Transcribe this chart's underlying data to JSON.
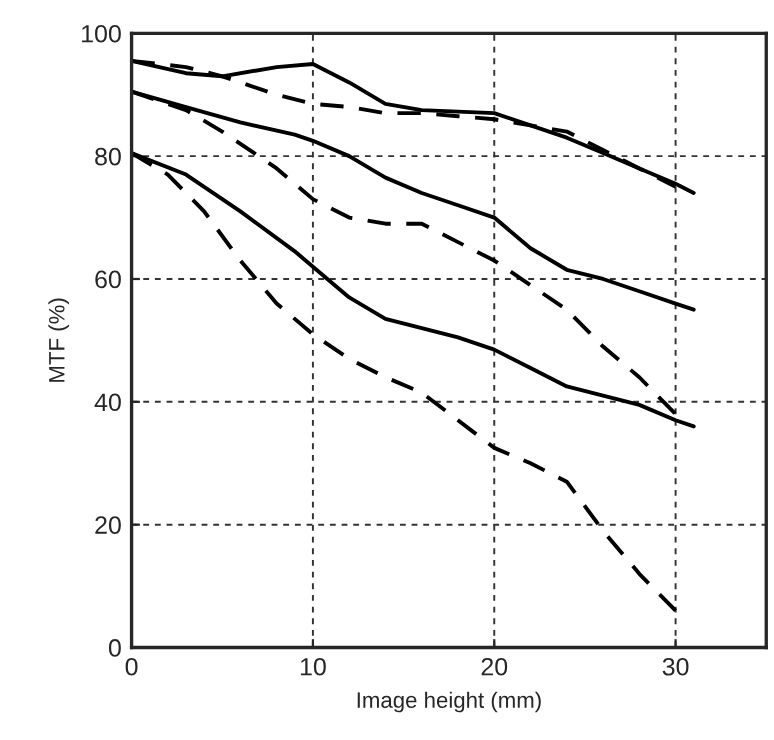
{
  "chart_data": {
    "type": "line",
    "xlabel": "Image height (mm)",
    "ylabel": "MTF (%)",
    "xlim": [
      0,
      35
    ],
    "ylim": [
      0,
      100
    ],
    "xticks": [
      0,
      10,
      20,
      30
    ],
    "yticks": [
      0,
      20,
      40,
      60,
      80,
      100
    ],
    "grid": true,
    "marker": "none",
    "series": [
      {
        "color": "#000000",
        "line_style": "solid",
        "x": [
          0,
          3,
          5,
          8,
          10,
          12,
          14,
          16,
          20,
          22,
          24,
          26,
          28,
          30,
          31
        ],
        "values": [
          95.5,
          93.5,
          93,
          94.5,
          95,
          92,
          88.5,
          87.5,
          87,
          85,
          83,
          80.5,
          78,
          75.5,
          74
        ]
      },
      {
        "color": "#000000",
        "line_style": "dashed",
        "x": [
          0,
          3,
          5,
          8,
          10,
          12,
          14,
          16,
          18,
          20,
          22,
          24,
          26,
          28,
          30
        ],
        "values": [
          95.5,
          94.5,
          93,
          90,
          88.5,
          88,
          87,
          87,
          86.5,
          86,
          85,
          84,
          81,
          78,
          75
        ]
      },
      {
        "color": "#000000",
        "line_style": "solid",
        "x": [
          0,
          3,
          6,
          9,
          10,
          12,
          14,
          16,
          18,
          20,
          22,
          24,
          26,
          28,
          30,
          31
        ],
        "values": [
          90.5,
          88,
          85.5,
          83.5,
          82.5,
          80,
          76.5,
          74,
          72,
          70,
          65,
          61.5,
          60,
          58,
          56,
          55
        ]
      },
      {
        "color": "#000000",
        "line_style": "dashed",
        "x": [
          0,
          3,
          5,
          8,
          10,
          12,
          14,
          16,
          18,
          20,
          22,
          24,
          26,
          28,
          30
        ],
        "values": [
          90.5,
          87.5,
          84,
          78,
          73,
          70,
          69,
          69,
          66,
          63,
          59,
          55,
          49,
          44,
          38
        ]
      },
      {
        "color": "#000000",
        "line_style": "solid",
        "x": [
          0,
          3,
          6,
          9,
          10,
          12,
          14,
          16,
          18,
          20,
          22,
          24,
          26,
          28,
          30,
          31
        ],
        "values": [
          80.5,
          77,
          71,
          64.5,
          62,
          57,
          53.5,
          52,
          50.5,
          48.5,
          45.5,
          42.5,
          41,
          39.5,
          37,
          36
        ]
      },
      {
        "color": "#000000",
        "line_style": "dashed",
        "x": [
          0,
          2,
          4,
          6,
          8,
          10,
          12,
          14,
          16,
          18,
          20,
          22,
          24,
          26,
          28,
          30
        ],
        "values": [
          80.5,
          77,
          71,
          63,
          56,
          51,
          47,
          44,
          41.5,
          37,
          32.5,
          30,
          27,
          19,
          12,
          6
        ]
      }
    ]
  }
}
